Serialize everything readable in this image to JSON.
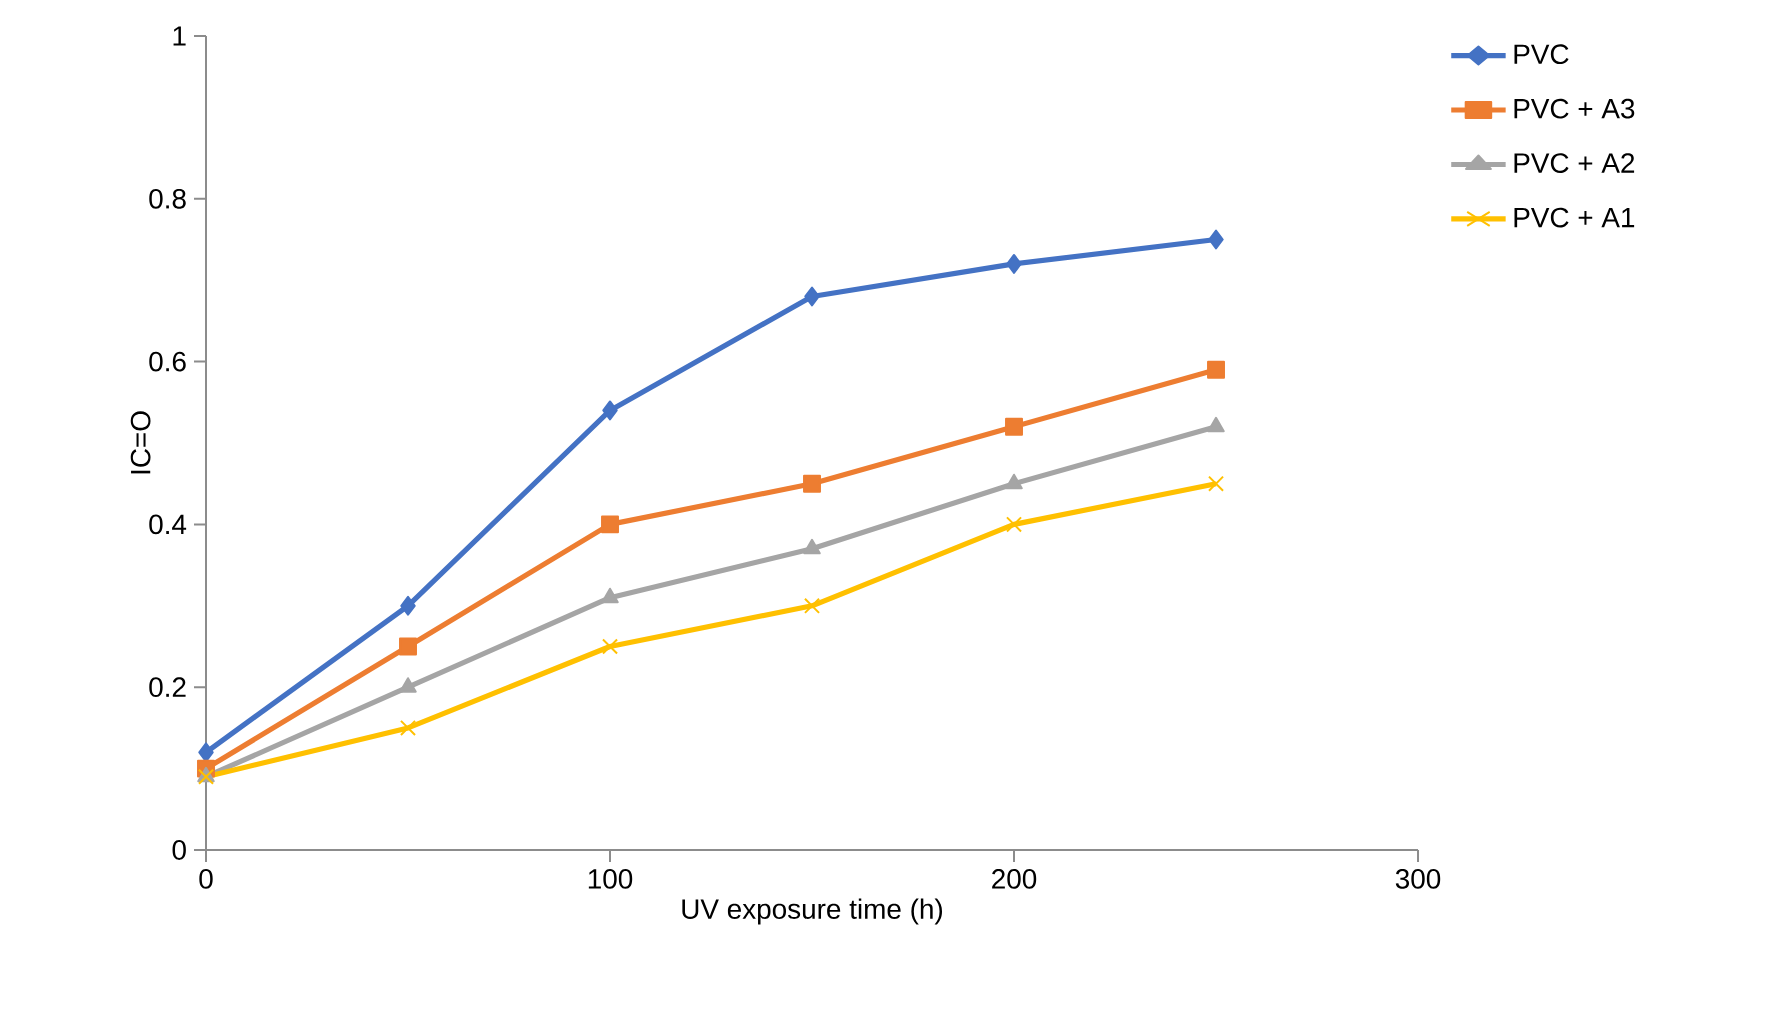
{
  "chart_data": {
    "type": "line",
    "xlabel": "UV exposure time (h)",
    "ylabel": "IC=O",
    "x": [
      0,
      50,
      100,
      150,
      200,
      250
    ],
    "series": [
      {
        "name": "PVC",
        "color": "#4472c4",
        "marker": "diamond",
        "values": [
          0.12,
          0.3,
          0.54,
          0.68,
          0.72,
          0.75
        ]
      },
      {
        "name": "PVC + A3",
        "color": "#ed7d31",
        "marker": "square",
        "values": [
          0.1,
          0.25,
          0.4,
          0.45,
          0.52,
          0.59
        ]
      },
      {
        "name": "PVC + A2",
        "color": "#a5a5a5",
        "marker": "triangle",
        "values": [
          0.09,
          0.2,
          0.31,
          0.37,
          0.45,
          0.52
        ]
      },
      {
        "name": "PVC + A1",
        "color": "#ffc000",
        "marker": "cross",
        "values": [
          0.09,
          0.15,
          0.25,
          0.3,
          0.4,
          0.45
        ]
      }
    ],
    "xlim": [
      0,
      300
    ],
    "xticks": [
      0,
      100,
      200,
      300
    ],
    "ylim": [
      0,
      1
    ],
    "yticks": [
      0,
      0.2,
      0.4,
      0.6,
      0.8,
      1
    ],
    "grid": false,
    "legend": "right"
  }
}
